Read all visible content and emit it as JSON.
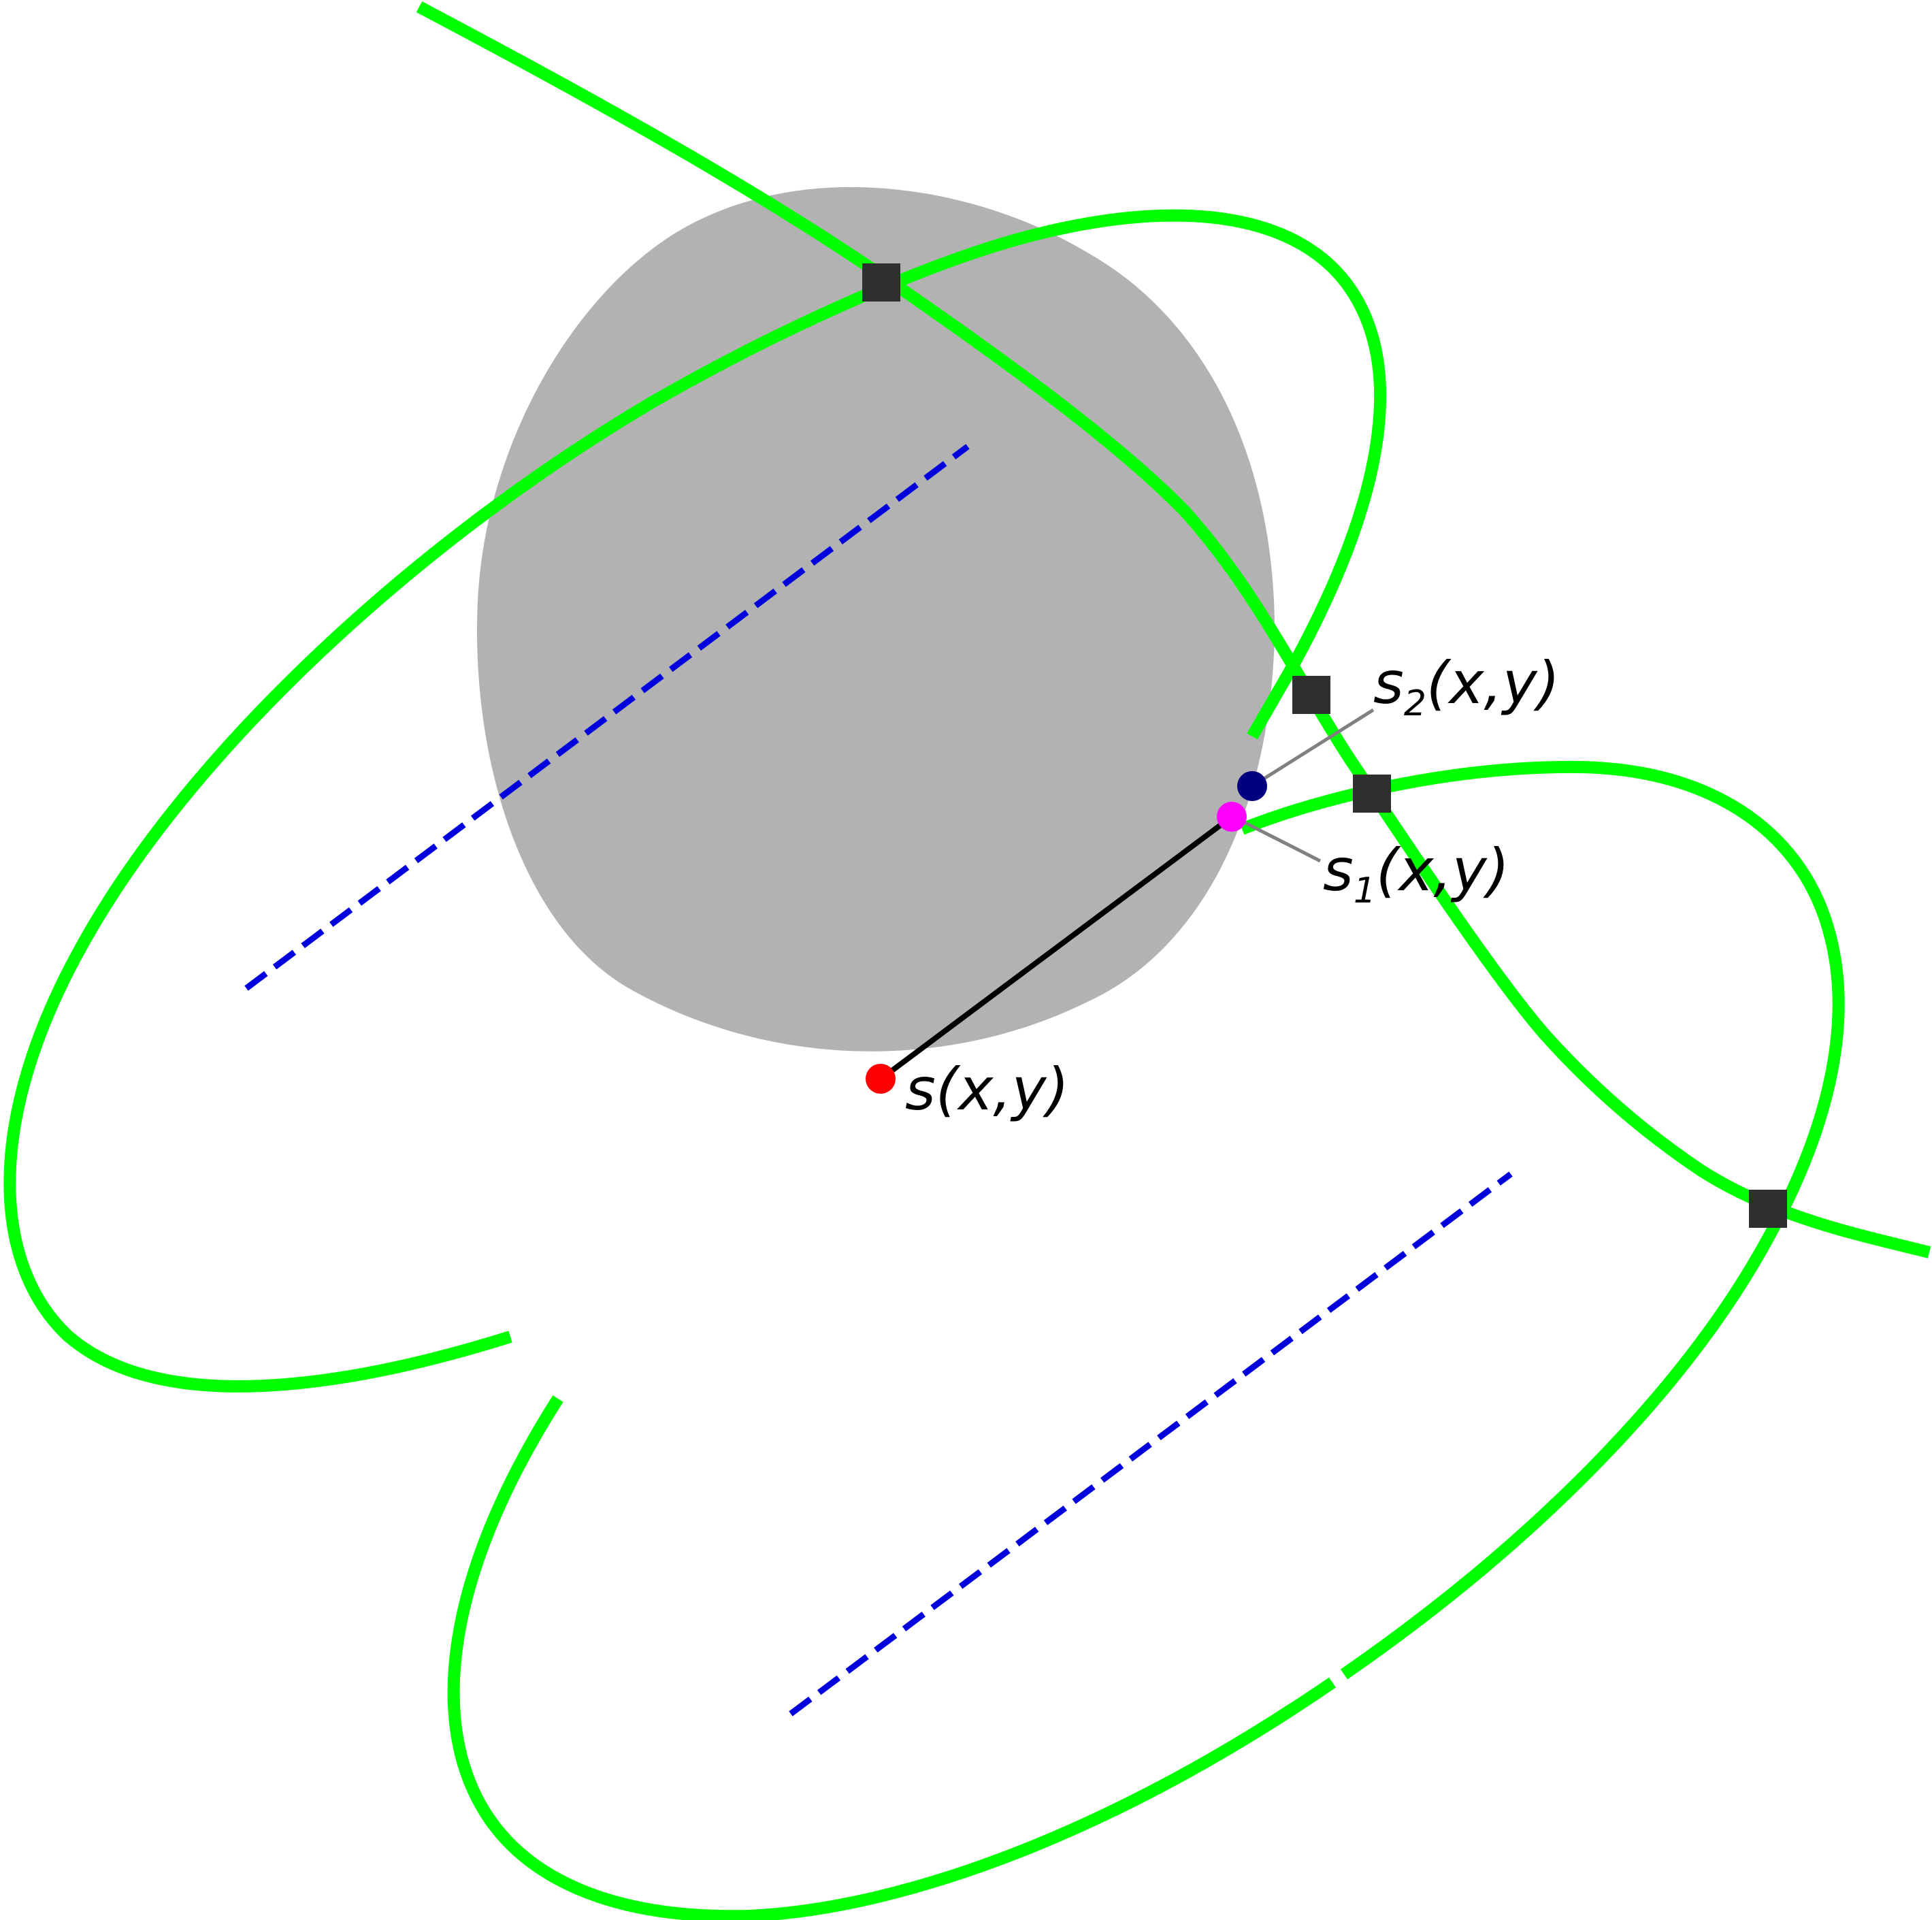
{
  "colors": {
    "background": "#ffffff",
    "circle_fill": "#b2b2b2",
    "curve": "#00ff00",
    "dashed_line": "#0000dd",
    "radius_line": "#000000",
    "leader_line": "#808080",
    "intersection_marker": "#2f2f2f",
    "center_point": "#ff0000",
    "point_s1": "#ff00ff",
    "point_s2": "#000080"
  },
  "labels": {
    "center": "s(x,y)",
    "s1": {
      "base": "s",
      "subscript": "1",
      "args": "(x,y)"
    },
    "s2": {
      "base": "s",
      "subscript": "2",
      "args": "(x,y)"
    }
  },
  "markers": {
    "intersection_shape": "square",
    "point_shape": "circle",
    "intersection_count": 4
  }
}
